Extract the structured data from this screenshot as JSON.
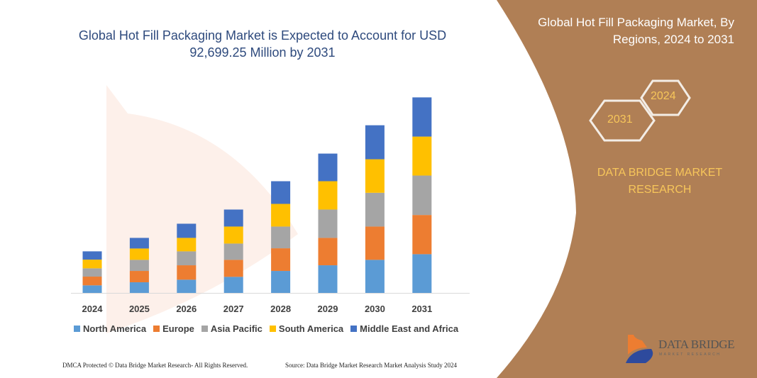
{
  "title": "Global Hot Fill Packaging Market is Expected to Account for USD 92,699.25 Million by 2031",
  "side_panel": {
    "title": "Global Hot Fill Packaging Market, By Regions, 2024 to 2031",
    "hex_years": [
      "2024",
      "2031"
    ],
    "brand": "DATA BRIDGE MARKET RESEARCH",
    "logo_text": "DATA BRIDGE",
    "logo_sub": "MARKET RESEARCH"
  },
  "footer": {
    "left": "DMCA Protected © Data Bridge Market Research- All Rights Reserved.",
    "right": "Source: Data Bridge Market Research Market Analysis Study 2024"
  },
  "colors": {
    "panel": "#B07F55",
    "accent_text": "#F7C65A",
    "title_text": "#2E4A7D"
  },
  "chart_data": {
    "type": "bar",
    "stacked": true,
    "title": "Global Hot Fill Packaging Market is Expected to Account for USD 92,699.25 Million by 2031",
    "categories": [
      "2024",
      "2025",
      "2026",
      "2027",
      "2028",
      "2029",
      "2030",
      "2031"
    ],
    "ylim": [
      0,
      850
    ],
    "y_axis_shown": false,
    "grid": false,
    "legend_position": "bottom",
    "series": [
      {
        "name": "North America",
        "color": "#5B9BD5",
        "values": [
          32,
          45,
          56,
          68,
          93,
          117,
          140,
          164
        ]
      },
      {
        "name": "Europe",
        "color": "#ED7D31",
        "values": [
          37,
          48,
          61,
          72,
          96,
          116,
          141,
          166
        ]
      },
      {
        "name": "Asia Pacific",
        "color": "#A5A5A5",
        "values": [
          35,
          47,
          59,
          69,
          92,
          120,
          143,
          167
        ]
      },
      {
        "name": "South America",
        "color": "#FFC000",
        "values": [
          37,
          48,
          57,
          72,
          96,
          120,
          142,
          165
        ]
      },
      {
        "name": "Middle East and Africa",
        "color": "#4472C4",
        "values": [
          35,
          45,
          60,
          72,
          96,
          117,
          144,
          166
        ]
      }
    ]
  }
}
